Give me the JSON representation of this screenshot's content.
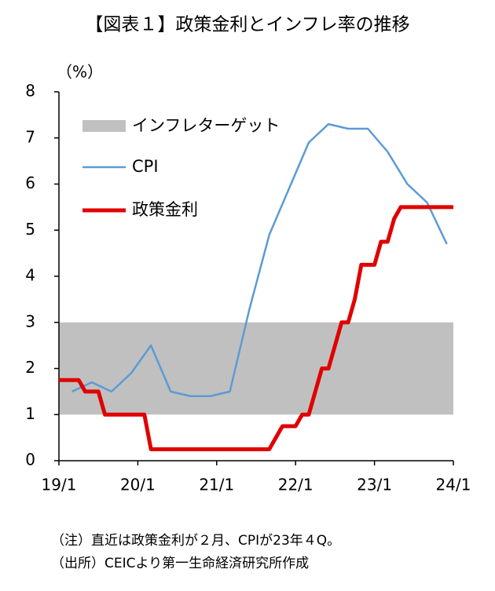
{
  "chart_data": {
    "type": "line",
    "title": "【図表１】政策金利とインフレ率の推移",
    "y_label": "（%）",
    "notes": [
      "（注）直近は政策金利が２月、CPIが23年４Q。",
      "（出所）CEICより第一生命経済研究所作成"
    ],
    "xlim": [
      "2019-01",
      "2024-01"
    ],
    "xticks": [
      {
        "value": "2019-01",
        "label": "19/1"
      },
      {
        "value": "2020-01",
        "label": "20/1"
      },
      {
        "value": "2021-01",
        "label": "21/1"
      },
      {
        "value": "2022-01",
        "label": "22/1"
      },
      {
        "value": "2023-01",
        "label": "23/1"
      },
      {
        "value": "2024-01",
        "label": "24/1"
      }
    ],
    "ylim": [
      0,
      8
    ],
    "yticks": [
      0,
      1,
      2,
      3,
      4,
      5,
      6,
      7,
      8
    ],
    "target_band": {
      "name": "インフレターゲット",
      "range": [
        1,
        3
      ],
      "color": "#c0c0c0"
    },
    "series": [
      {
        "name": "CPI",
        "color": "#5b9bd5",
        "x": [
          "2019-03",
          "2019-06",
          "2019-09",
          "2019-12",
          "2020-03",
          "2020-06",
          "2020-09",
          "2020-12",
          "2021-03",
          "2021-06",
          "2021-09",
          "2021-12",
          "2022-03",
          "2022-06",
          "2022-09",
          "2022-12",
          "2023-03",
          "2023-06",
          "2023-09",
          "2023-12"
        ],
        "values": [
          1.5,
          1.7,
          1.5,
          1.9,
          2.5,
          1.5,
          1.4,
          1.4,
          1.5,
          3.3,
          4.9,
          5.9,
          6.9,
          7.3,
          7.2,
          7.2,
          6.7,
          6.0,
          5.6,
          4.7
        ]
      },
      {
        "name": "政策金利",
        "color": "#e00000",
        "x": [
          "2019-01",
          "2019-02",
          "2019-03",
          "2019-04",
          "2019-05",
          "2019-06",
          "2019-07",
          "2019-08",
          "2019-09",
          "2019-10",
          "2019-11",
          "2019-12",
          "2020-01",
          "2020-02",
          "2020-03",
          "2020-04",
          "2020-05",
          "2020-06",
          "2020-07",
          "2020-08",
          "2020-09",
          "2020-10",
          "2020-11",
          "2020-12",
          "2021-01",
          "2021-02",
          "2021-03",
          "2021-04",
          "2021-05",
          "2021-06",
          "2021-07",
          "2021-08",
          "2021-09",
          "2021-10",
          "2021-11",
          "2021-12",
          "2022-01",
          "2022-02",
          "2022-03",
          "2022-04",
          "2022-05",
          "2022-06",
          "2022-07",
          "2022-08",
          "2022-09",
          "2022-10",
          "2022-11",
          "2022-12",
          "2023-01",
          "2023-02",
          "2023-03",
          "2023-04",
          "2023-05",
          "2023-06",
          "2023-07",
          "2023-08",
          "2023-09",
          "2023-10",
          "2023-11",
          "2023-12",
          "2024-01"
        ],
        "values": [
          1.75,
          1.75,
          1.75,
          1.75,
          1.5,
          1.5,
          1.5,
          1.0,
          1.0,
          1.0,
          1.0,
          1.0,
          1.0,
          1.0,
          0.25,
          0.25,
          0.25,
          0.25,
          0.25,
          0.25,
          0.25,
          0.25,
          0.25,
          0.25,
          0.25,
          0.25,
          0.25,
          0.25,
          0.25,
          0.25,
          0.25,
          0.25,
          0.25,
          0.5,
          0.75,
          0.75,
          0.75,
          1.0,
          1.0,
          1.5,
          2.0,
          2.0,
          2.5,
          3.0,
          3.0,
          3.5,
          4.25,
          4.25,
          4.25,
          4.75,
          4.75,
          5.25,
          5.5,
          5.5,
          5.5,
          5.5,
          5.5,
          5.5,
          5.5,
          5.5,
          5.5
        ]
      }
    ]
  }
}
